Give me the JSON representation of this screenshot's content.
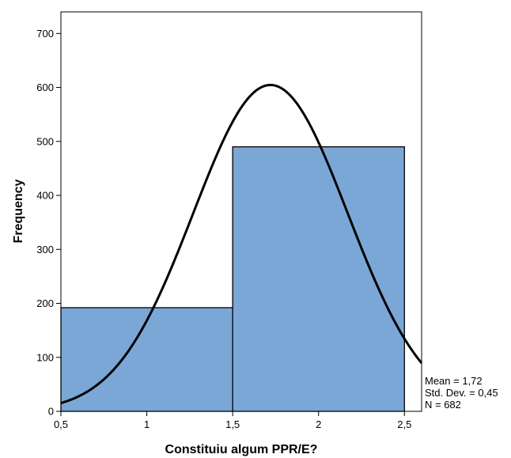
{
  "chart_data": {
    "type": "bar",
    "title": "",
    "xlabel": "Constituiu algum PPR/E?",
    "ylabel": "Frequency",
    "xlim": [
      0.5,
      2.6
    ],
    "ylim": [
      0,
      740
    ],
    "x_ticks": [
      0.5,
      1,
      1.5,
      2,
      2.5
    ],
    "x_tick_labels": [
      "0,5",
      "1",
      "1,5",
      "2",
      "2,5"
    ],
    "y_ticks": [
      0,
      100,
      200,
      300,
      400,
      500,
      600,
      700
    ],
    "y_tick_labels": [
      "0",
      "100",
      "200",
      "300",
      "400",
      "500",
      "600",
      "700"
    ],
    "bins": [
      {
        "start": 0.5,
        "end": 1.5,
        "value": 192
      },
      {
        "start": 1.5,
        "end": 2.5,
        "value": 490
      }
    ],
    "bar_color": "#7ba7d7",
    "normal_curve": {
      "mean": 1.72,
      "std_dev": 0.45,
      "n": 682,
      "bin_width": 1
    },
    "stats": [
      {
        "label": "Mean",
        "value": "1,72"
      },
      {
        "label": "Std. Dev.",
        "value": "0,45"
      },
      {
        "label": "N",
        "value": "682"
      }
    ],
    "stats_lines": [
      "Mean = 1,72",
      "Std. Dev. = 0,45",
      "N = 682"
    ],
    "grid": false,
    "legend": "none"
  }
}
